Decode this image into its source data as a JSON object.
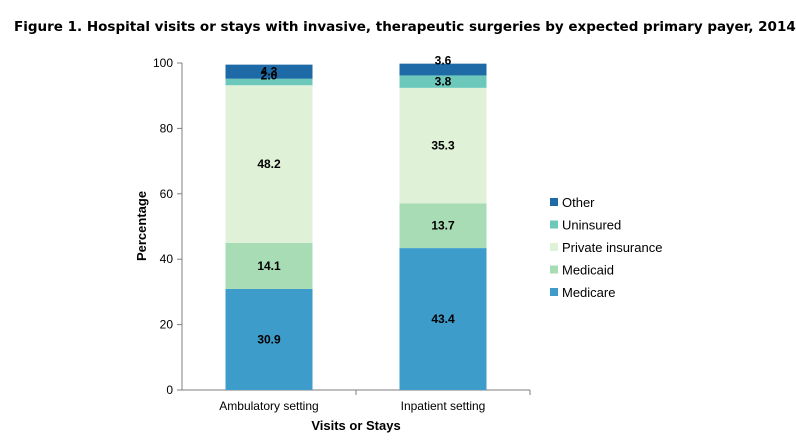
{
  "chart_data": {
    "type": "bar",
    "stacked": true,
    "title": "Figure 1. Hospital visits or stays with invasive, therapeutic surgeries by expected primary payer, 2014",
    "xlabel": "Visits or Stays",
    "ylabel": "Percentage",
    "ylim": [
      0,
      100
    ],
    "yticks": [
      "0",
      "20",
      "40",
      "60",
      "80",
      "100"
    ],
    "grid": false,
    "legend_position": "right",
    "categories": [
      "Ambulatory setting",
      "Inpatient setting"
    ],
    "series": [
      {
        "name": "Medicare",
        "color": "#3d9cca",
        "values": [
          30.9,
          43.4
        ],
        "labels": [
          "30.9",
          "43.4"
        ]
      },
      {
        "name": "Medicaid",
        "color": "#a8dcb4",
        "values": [
          14.1,
          13.7
        ],
        "labels": [
          "14.1",
          "13.7"
        ]
      },
      {
        "name": "Private insurance",
        "color": "#dff2d8",
        "values": [
          48.2,
          35.3
        ],
        "labels": [
          "48.2",
          "35.3"
        ]
      },
      {
        "name": "Uninsured",
        "color": "#6cc8bb",
        "values": [
          2.0,
          3.8
        ],
        "labels": [
          "2.0",
          "3.8"
        ]
      },
      {
        "name": "Other",
        "color": "#1d6aa7",
        "values": [
          4.3,
          3.6
        ],
        "labels": [
          "4.3",
          "3.6"
        ]
      }
    ]
  }
}
